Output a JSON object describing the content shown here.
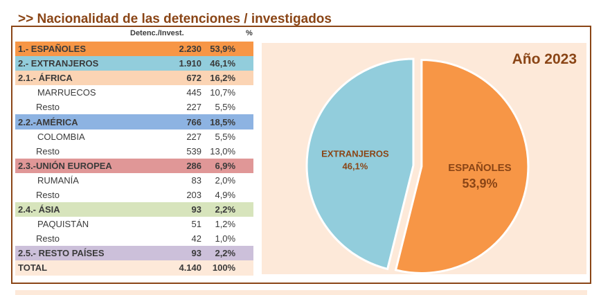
{
  "title": ">> Nacionalidad de las detenciones / investigados",
  "headers": {
    "count": "Detenc./Invest.",
    "pct": "%"
  },
  "rows": [
    {
      "label": "1.- ESPAÑOLES",
      "value": "2.230",
      "pct": "53,9%",
      "level": "group",
      "color": "#f79646"
    },
    {
      "label": "2.- EXTRANJEROS",
      "value": "1.910",
      "pct": "46,1%",
      "level": "group",
      "color": "#92cddc"
    },
    {
      "label": "2.1.- ÁFRICA",
      "value": "672",
      "pct": "16,2%",
      "level": "region",
      "color": "#fbd4b4"
    },
    {
      "label": "MARRUECOS",
      "value": "445",
      "pct": "10,7%",
      "level": "country"
    },
    {
      "label": "Resto",
      "value": "227",
      "pct": "5,5%",
      "level": "rest"
    },
    {
      "label": "2.2.-AMÉRICA",
      "value": "766",
      "pct": "18,5%",
      "level": "region",
      "color": "#8db3e2"
    },
    {
      "label": "COLOMBIA",
      "value": "227",
      "pct": "5,5%",
      "level": "country"
    },
    {
      "label": "Resto",
      "value": "539",
      "pct": "13,0%",
      "level": "rest"
    },
    {
      "label": "2.3.-UNIÓN EUROPEA",
      "value": "286",
      "pct": "6,9%",
      "level": "region",
      "color": "#e09797"
    },
    {
      "label": "RUMANÍA",
      "value": "83",
      "pct": "2,0%",
      "level": "country"
    },
    {
      "label": "Resto",
      "value": "203",
      "pct": "4,9%",
      "level": "rest"
    },
    {
      "label": "2.4.- ÁSIA",
      "value": "93",
      "pct": "2,2%",
      "level": "region",
      "color": "#d7e4bc"
    },
    {
      "label": "PAQUISTÁN",
      "value": "51",
      "pct": "1,2%",
      "level": "country"
    },
    {
      "label": "Resto",
      "value": "42",
      "pct": "1,0%",
      "level": "rest"
    },
    {
      "label": "2.5.- RESTO PAÍSES",
      "value": "93",
      "pct": "2,2%",
      "level": "region",
      "color": "#ccc0da"
    },
    {
      "label": "TOTAL",
      "value": "4.140",
      "pct": "100%",
      "level": "total",
      "color": "#fde9d9"
    }
  ],
  "chart_data": {
    "type": "pie",
    "title": "Año 2023",
    "slices": [
      {
        "label": "ESPAÑOLES",
        "value": 53.9,
        "display": "53,9%",
        "color": "#f79646",
        "exploded": true
      },
      {
        "label": "EXTRANJEROS",
        "value": 46.1,
        "display": "46,1%",
        "color": "#92cddc",
        "exploded": false
      }
    ],
    "background": "#fde9d9",
    "label_color": "#8a4516"
  }
}
